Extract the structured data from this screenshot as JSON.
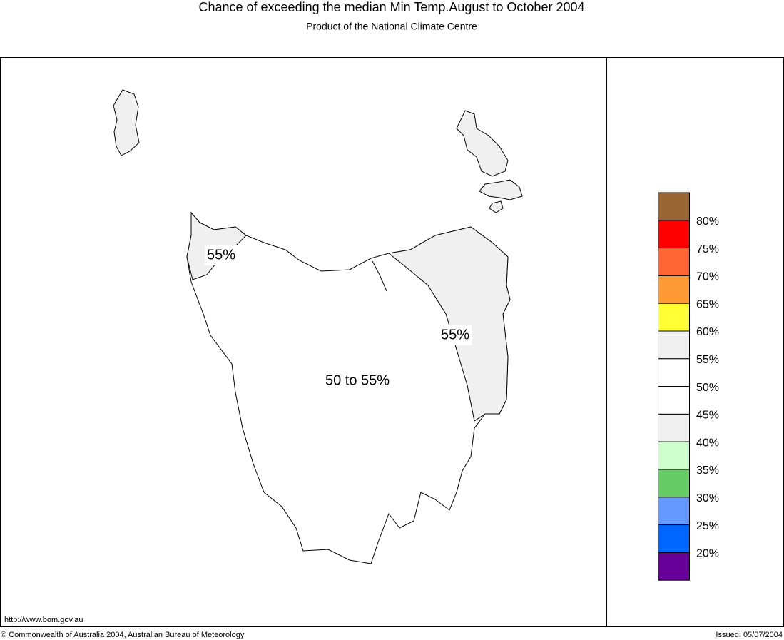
{
  "header": {
    "title": "Chance of exceeding the median Min Temp.August to October 2004",
    "subtitle": "Product of the National Climate Centre"
  },
  "map": {
    "labels": [
      {
        "text": "55%",
        "boxed": true
      },
      {
        "text": "55%",
        "boxed": true
      },
      {
        "text": "50 to 55%",
        "boxed": false
      }
    ],
    "land_color": "#ffffff",
    "shaded_color": "#f0f0f0"
  },
  "legend": {
    "colors": [
      "#996633",
      "#ff0000",
      "#ff6633",
      "#ff9933",
      "#ffff33",
      "#f0f0f0",
      "#ffffff",
      "#ffffff",
      "#f0f0f0",
      "#ccffcc",
      "#66cc66",
      "#6699ff",
      "#0066ff",
      "#660099"
    ],
    "labels": [
      "80%",
      "75%",
      "70%",
      "65%",
      "60%",
      "55%",
      "50%",
      "45%",
      "40%",
      "35%",
      "30%",
      "25%",
      "20%"
    ]
  },
  "footer": {
    "url": "http://www.bom.gov.au",
    "copyright": "© Commonwealth of Australia 2004, Australian Bureau of Meteorology",
    "issued": "Issued: 05/07/2004"
  }
}
